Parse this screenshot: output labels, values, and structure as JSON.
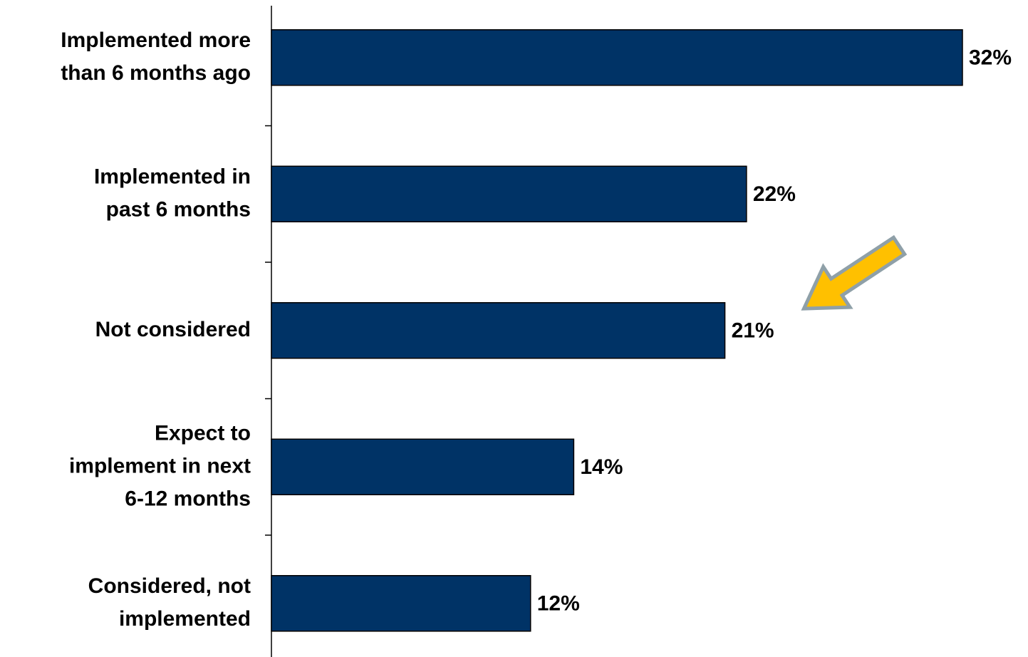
{
  "chart_data": {
    "type": "bar",
    "orientation": "horizontal",
    "categories": [
      "Implemented more\nthan 6 months ago",
      "Implemented in\npast 6 months",
      "Not considered",
      "Expect to\nimplement in next\n6-12 months",
      "Considered, not\nimplemented"
    ],
    "values": [
      32,
      22,
      21,
      14,
      12
    ],
    "value_labels": [
      "32%",
      "22%",
      "21%",
      "14%",
      "12%"
    ],
    "color": "#003366"
  }
}
